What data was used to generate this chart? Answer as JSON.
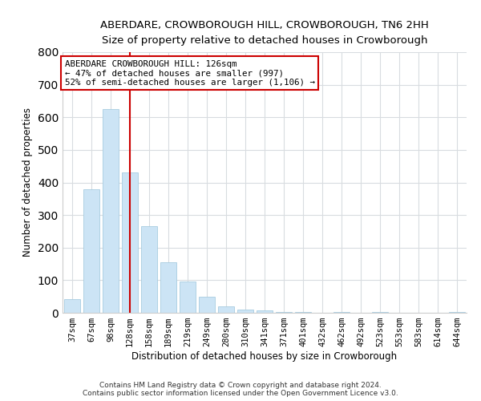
{
  "title": "ABERDARE, CROWBOROUGH HILL, CROWBOROUGH, TN6 2HH",
  "subtitle": "Size of property relative to detached houses in Crowborough",
  "xlabel": "Distribution of detached houses by size in Crowborough",
  "ylabel": "Number of detached properties",
  "categories": [
    "37sqm",
    "67sqm",
    "98sqm",
    "128sqm",
    "158sqm",
    "189sqm",
    "219sqm",
    "249sqm",
    "280sqm",
    "310sqm",
    "341sqm",
    "371sqm",
    "401sqm",
    "432sqm",
    "462sqm",
    "492sqm",
    "523sqm",
    "553sqm",
    "583sqm",
    "614sqm",
    "644sqm"
  ],
  "values": [
    43,
    380,
    625,
    430,
    265,
    155,
    97,
    50,
    20,
    10,
    7,
    3,
    3,
    0,
    3,
    0,
    3,
    0,
    0,
    0,
    3
  ],
  "bar_color": "#cce4f5",
  "bar_edge_color": "#a8cce0",
  "vline_x_index": 3,
  "vline_color": "#cc0000",
  "annotation_text": "ABERDARE CROWBOROUGH HILL: 126sqm\n← 47% of detached houses are smaller (997)\n52% of semi-detached houses are larger (1,106) →",
  "annotation_box_color": "#cc0000",
  "ylim": [
    0,
    800
  ],
  "yticks": [
    0,
    100,
    200,
    300,
    400,
    500,
    600,
    700,
    800
  ],
  "footer_line1": "Contains HM Land Registry data © Crown copyright and database right 2024.",
  "footer_line2": "Contains public sector information licensed under the Open Government Licence v3.0.",
  "background_color": "#ffffff",
  "grid_color": "#d8dce0"
}
